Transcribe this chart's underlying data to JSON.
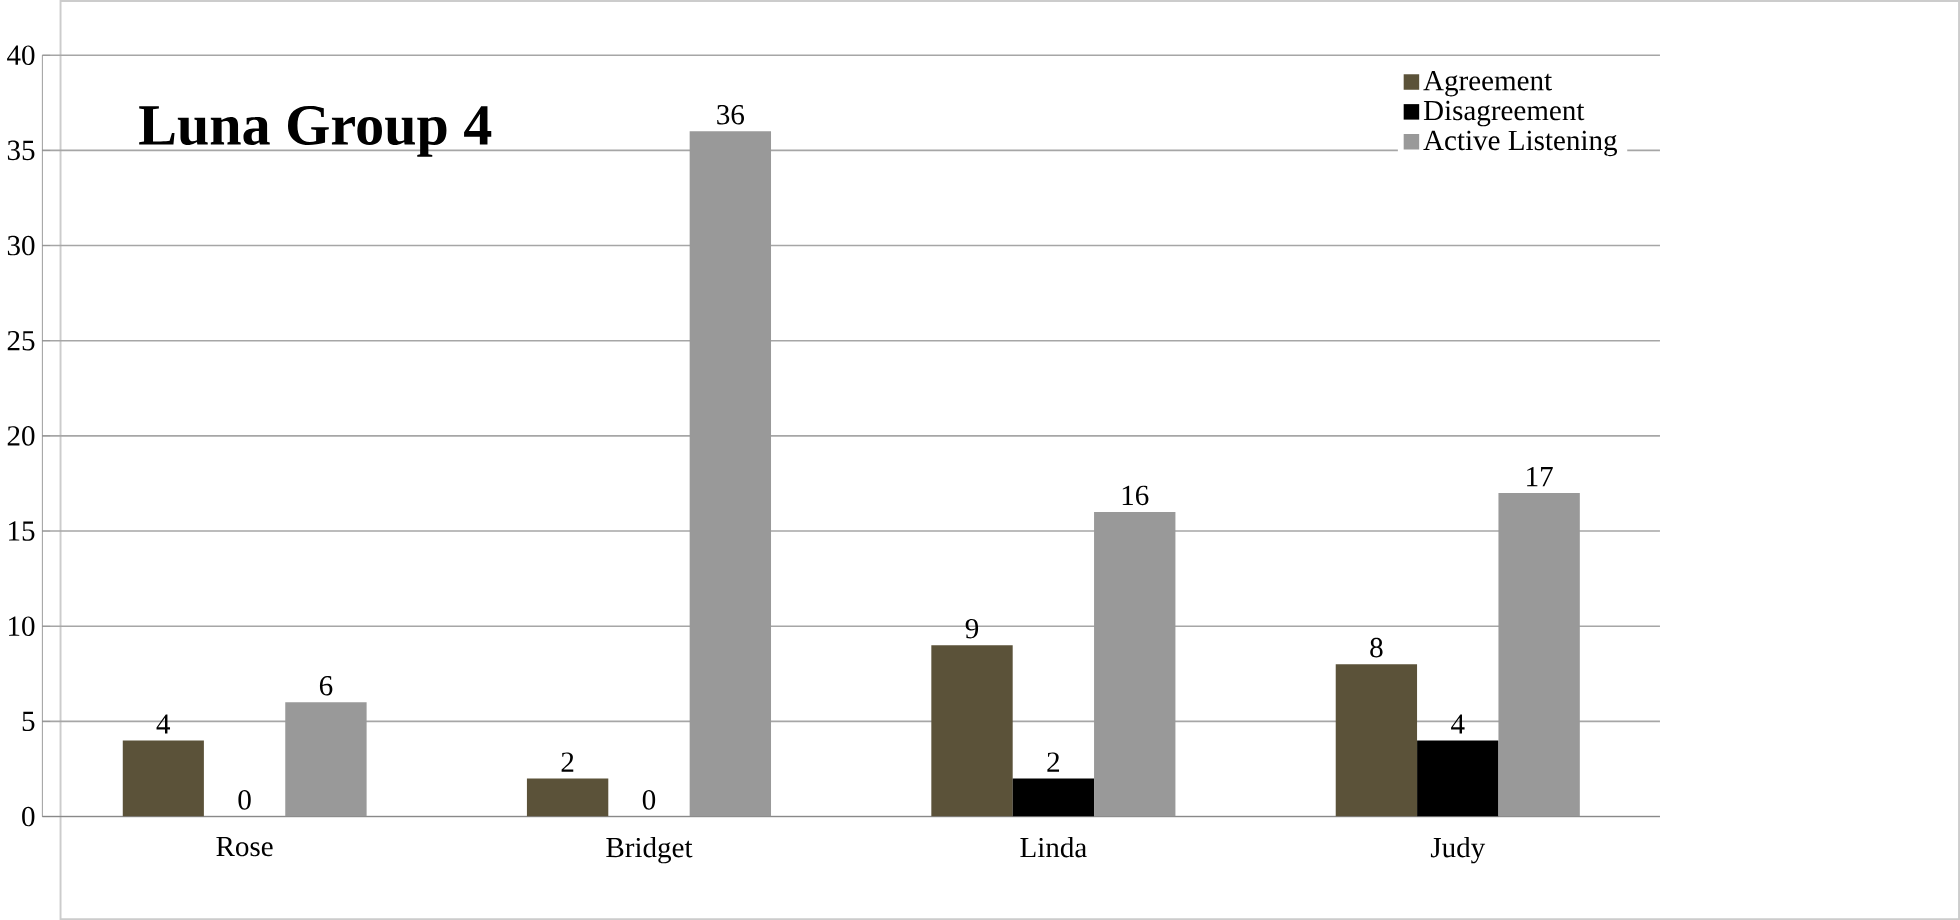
{
  "chart_data": {
    "type": "bar",
    "title": "Luna Group 4",
    "categories": [
      "Rose",
      "Bridget",
      "Linda",
      "Judy"
    ],
    "series": [
      {
        "name": "Agreement",
        "color": "#5b5239",
        "values": [
          4,
          2,
          9,
          8
        ]
      },
      {
        "name": "Disagreement",
        "color": "#000000",
        "values": [
          0,
          0,
          2,
          4
        ]
      },
      {
        "name": "Active Listening",
        "color": "#999999",
        "values": [
          6,
          36,
          16,
          17
        ]
      }
    ],
    "ylim": [
      0,
      40
    ],
    "yticks": [
      0,
      5,
      10,
      15,
      20,
      25,
      30,
      35,
      40
    ],
    "grid": "y",
    "legend": "top right",
    "data_labels": true
  }
}
